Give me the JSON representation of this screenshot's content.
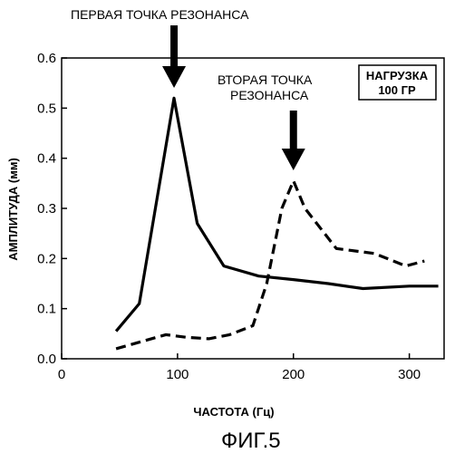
{
  "chart_data": {
    "type": "line",
    "xlabel": "ЧАСТОТА (Гц)",
    "ylabel": "АМПЛИТУДА (мм)",
    "xlim": [
      0,
      330
    ],
    "ylim": [
      0,
      0.6
    ],
    "xticks": [
      0,
      100,
      200,
      300
    ],
    "yticks": [
      0.0,
      0.1,
      0.2,
      0.3,
      0.4,
      0.5,
      0.6
    ],
    "ytick_labels": [
      "0.0",
      "0.1",
      "0.2",
      "0.3",
      "0.4",
      "0.5",
      "0.6"
    ],
    "grid": false,
    "series": [
      {
        "style": "solid",
        "x": [
          47,
          67,
          97,
          117,
          140,
          170,
          200,
          230,
          260,
          300,
          325
        ],
        "y": [
          0.055,
          0.11,
          0.52,
          0.27,
          0.185,
          0.165,
          0.158,
          0.15,
          0.14,
          0.145,
          0.145
        ]
      },
      {
        "style": "dashed",
        "x": [
          47,
          70,
          90,
          107,
          127,
          145,
          165,
          177,
          190,
          200,
          210,
          237,
          270,
          297,
          313
        ],
        "y": [
          0.02,
          0.035,
          0.048,
          0.043,
          0.04,
          0.048,
          0.066,
          0.15,
          0.3,
          0.355,
          0.3,
          0.22,
          0.21,
          0.185,
          0.195
        ]
      }
    ],
    "annotations": [
      {
        "text": "ПЕРВАЯ ТОЧКА РЕЗОНАНСА",
        "x": 97,
        "y": 0.52
      },
      {
        "text_line1": "ВТОРАЯ ТОЧКА",
        "text_line2": "РЕЗОНАНСА",
        "x": 200,
        "y": 0.355
      }
    ],
    "load_box": {
      "line1": "НАГРУЗКА",
      "line2": "100 ГР"
    },
    "figure_label": "ФИГ.5"
  }
}
